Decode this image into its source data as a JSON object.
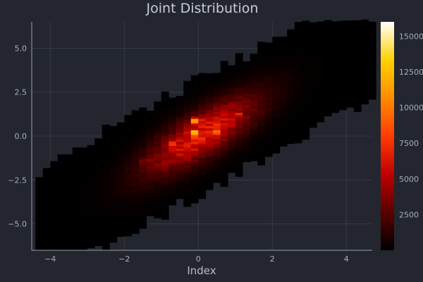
{
  "chart_data": {
    "type": "heatmap",
    "title": "Joint Distribution",
    "xlabel": "Index",
    "ylabel": "",
    "xlim": [
      -4.5,
      4.7
    ],
    "ylim": [
      -6.5,
      6.5
    ],
    "x_ticks": [
      -4,
      -2,
      0,
      2,
      4
    ],
    "x_tick_labels": [
      "−4",
      "−2",
      "0",
      "2",
      "4"
    ],
    "y_ticks": [
      -5,
      -2.5,
      0,
      2.5,
      5
    ],
    "y_tick_labels": [
      "−5.0",
      "−2.5",
      "0.0",
      "2.5",
      "5.0"
    ],
    "colorbar": {
      "colormap": "fire",
      "range": [
        0,
        16000
      ],
      "ticks": [
        2500,
        5000,
        7500,
        10000,
        12500,
        15000
      ],
      "tick_labels": [
        "2500",
        "5000",
        "7500",
        "10000",
        "12500",
        "15000"
      ],
      "colors": [
        "#000000",
        "#5a0000",
        "#c00000",
        "#ff3c00",
        "#ff8c00",
        "#ffd200",
        "#ffffff"
      ]
    },
    "distribution": {
      "correlation_slope": 1.15,
      "x_range_of_data": [
        -4.4,
        4.6
      ],
      "peak_value": 15800,
      "hot_spots": [
        {
          "x": -0.15,
          "y": 0.1,
          "value": 15800
        },
        {
          "x": -0.15,
          "y": 0.8,
          "value": 12000
        },
        {
          "x": 0.4,
          "y": 0.2,
          "value": 10500
        },
        {
          "x": 0.9,
          "y": 1.2,
          "value": 8000
        },
        {
          "x": -0.8,
          "y": -0.5,
          "value": 7000
        },
        {
          "x": -1.5,
          "y": -1.5,
          "value": 5000
        }
      ]
    },
    "grid": true,
    "legend": "none"
  }
}
